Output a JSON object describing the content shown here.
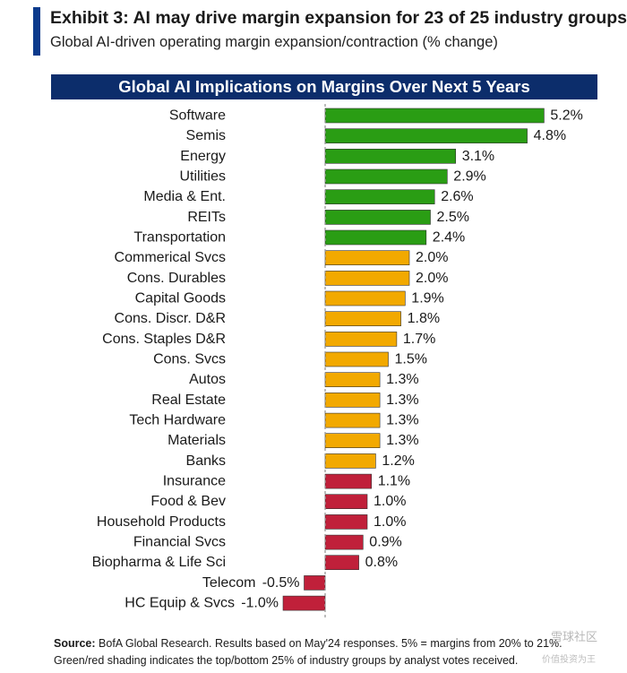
{
  "header": {
    "title": "Exhibit 3: AI may drive margin expansion for 23 of 25 industry groups",
    "subtitle": "Global AI-driven operating margin expansion/contraction (% change)"
  },
  "colors": {
    "top": "#2a9d14",
    "middle": "#f2a900",
    "bottom": "#c0203a",
    "banner": "#0c2d6b",
    "accent": "#0b3a8c"
  },
  "chart_data": {
    "type": "bar",
    "orientation": "horizontal",
    "title": "Global AI Implications on Margins Over Next 5 Years",
    "xlabel": "",
    "ylabel": "",
    "unit": "%",
    "categories": [
      "Software",
      "Semis",
      "Energy",
      "Utilities",
      "Media & Ent.",
      "REITs",
      "Transportation",
      "Commerical Svcs",
      "Cons. Durables",
      "Capital Goods",
      "Cons. Discr. D&R",
      "Cons. Staples D&R",
      "Cons. Svcs",
      "Autos",
      "Real Estate",
      "Tech Hardware",
      "Materials",
      "Banks",
      "Insurance",
      "Food & Bev",
      "Household Products",
      "Financial Svcs",
      "Biopharma & Life Sci",
      "Telecom",
      "HC Equip & Svcs"
    ],
    "values": [
      5.2,
      4.8,
      3.1,
      2.9,
      2.6,
      2.5,
      2.4,
      2.0,
      2.0,
      1.9,
      1.8,
      1.7,
      1.5,
      1.3,
      1.3,
      1.3,
      1.3,
      1.2,
      1.1,
      1.0,
      1.0,
      0.9,
      0.8,
      -0.5,
      -1.0
    ],
    "value_labels": [
      "5.2%",
      "4.8%",
      "3.1%",
      "2.9%",
      "2.6%",
      "2.5%",
      "2.4%",
      "2.0%",
      "2.0%",
      "1.9%",
      "1.8%",
      "1.7%",
      "1.5%",
      "1.3%",
      "1.3%",
      "1.3%",
      "1.3%",
      "1.2%",
      "1.1%",
      "1.0%",
      "1.0%",
      "0.9%",
      "0.8%",
      "-0.5%",
      "-1.0%"
    ],
    "groups": [
      "top",
      "top",
      "top",
      "top",
      "top",
      "top",
      "top",
      "middle",
      "middle",
      "middle",
      "middle",
      "middle",
      "middle",
      "middle",
      "middle",
      "middle",
      "middle",
      "middle",
      "bottom",
      "bottom",
      "bottom",
      "bottom",
      "bottom",
      "bottom",
      "bottom"
    ],
    "xlim": [
      -1.0,
      5.2
    ],
    "grid": false,
    "legend": "none"
  },
  "footer": {
    "source_label": "Source:",
    "source_text": "BofA Global Research. Results based on May'24 responses. 5% = margins from 20% to 21%.",
    "note": "Green/red shading indicates the top/bottom 25% of industry groups by analyst votes received."
  },
  "watermark": {
    "text": "雪球社区",
    "subtext": "价值投资为王"
  }
}
